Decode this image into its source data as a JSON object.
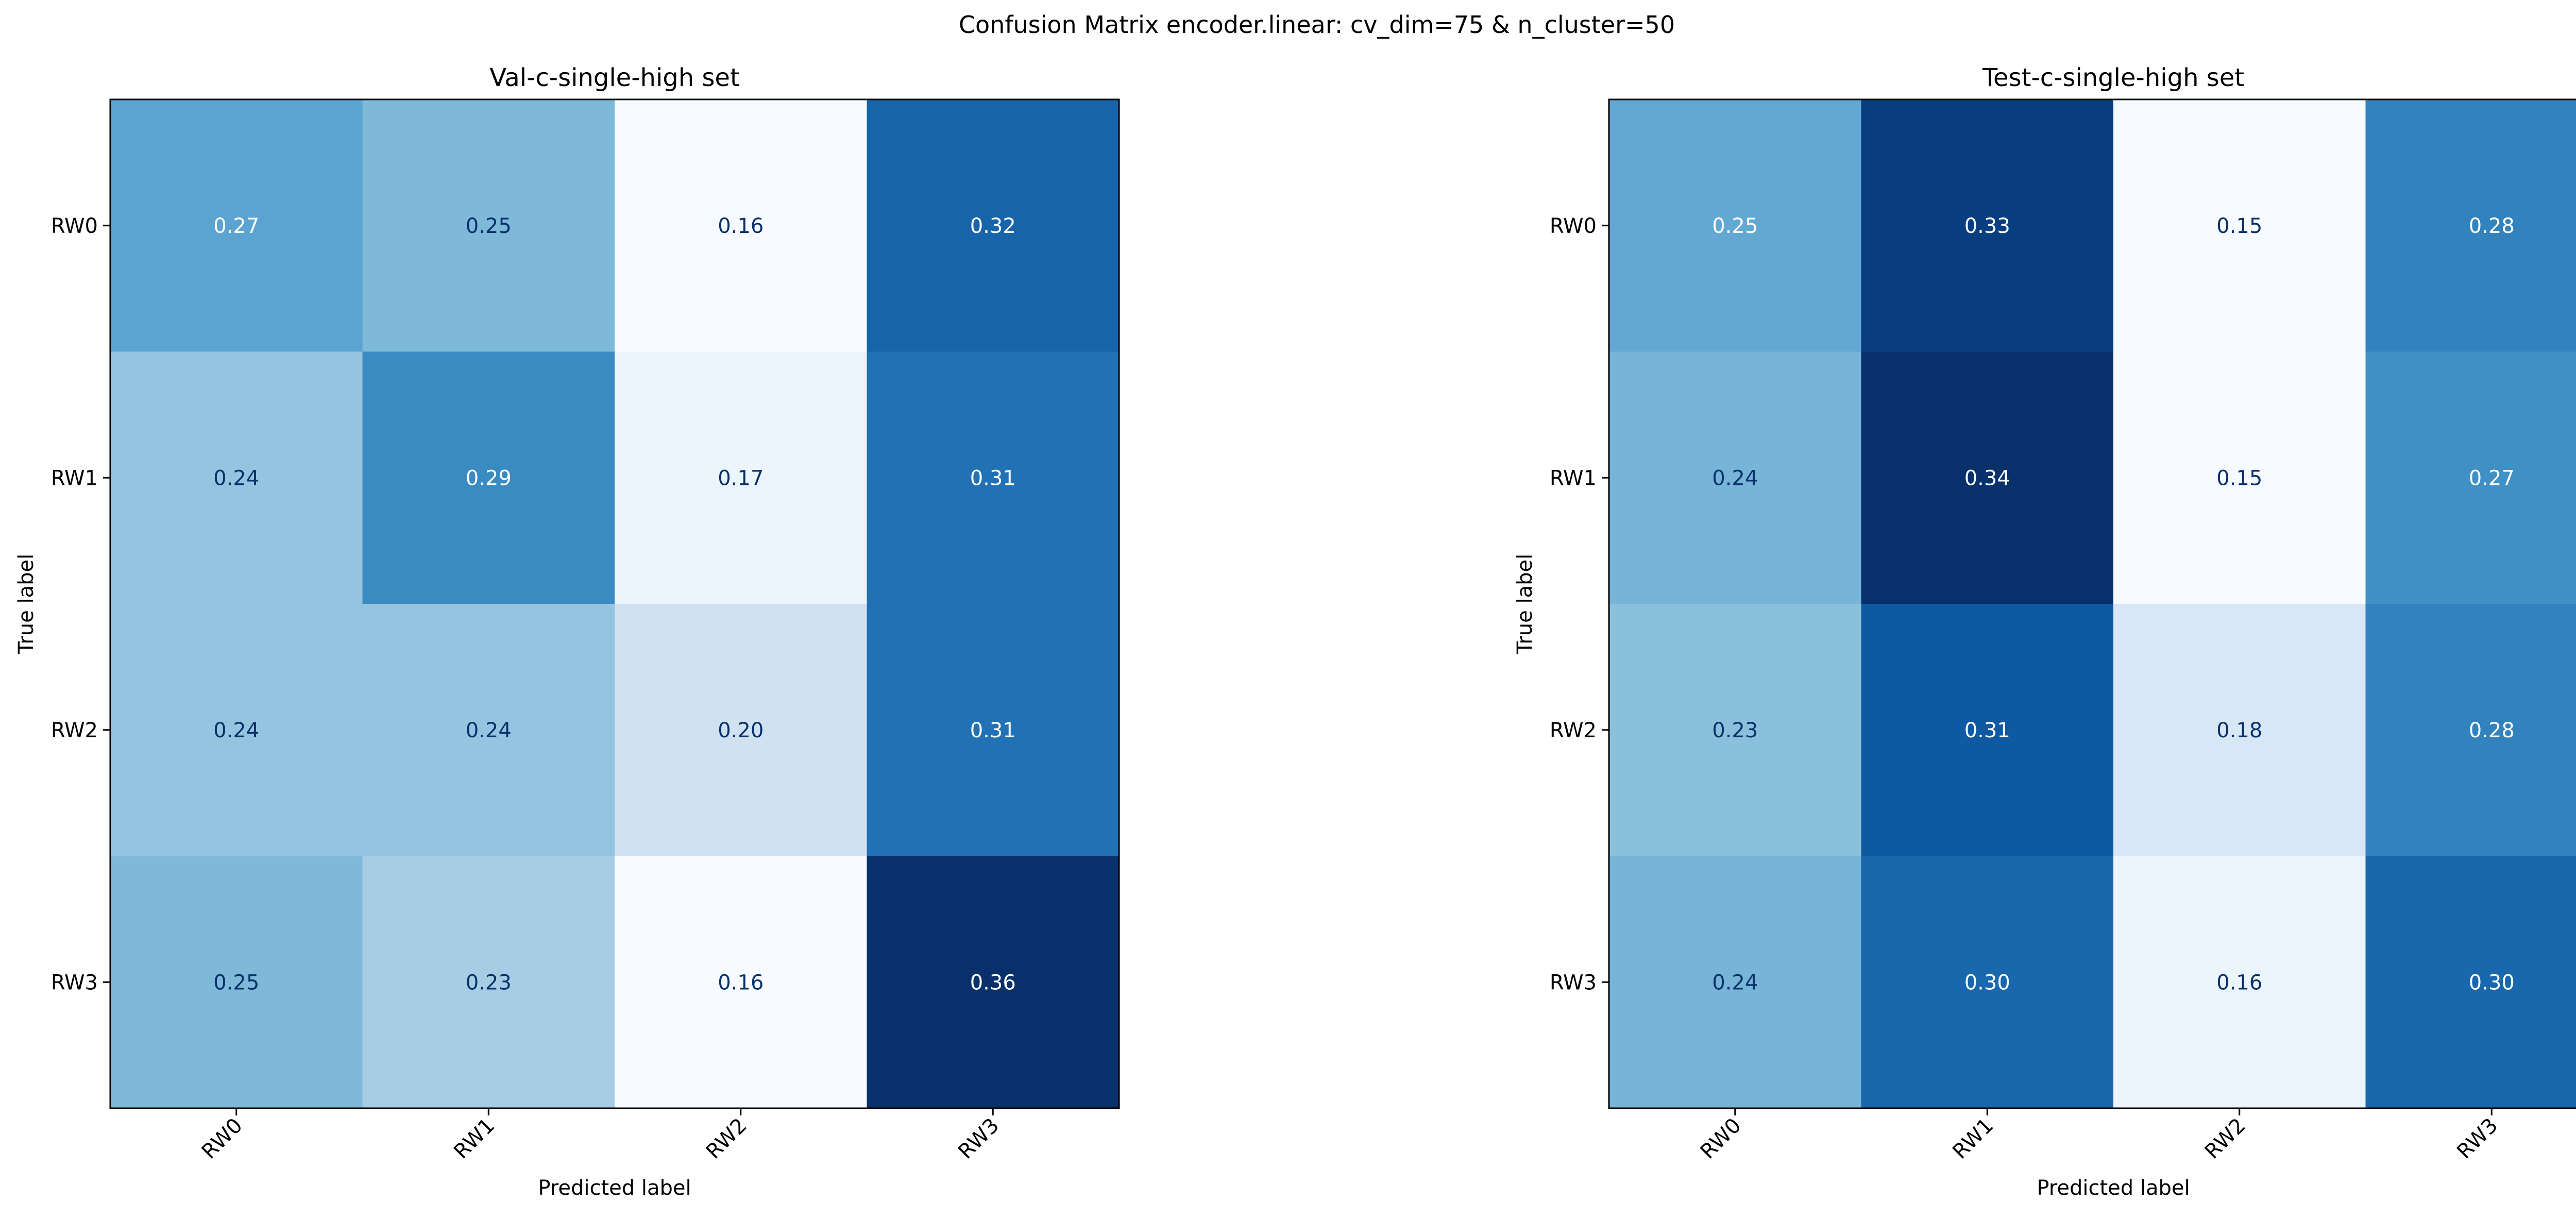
{
  "figure": {
    "suptitle": "Confusion Matrix encoder.linear: cv_dim=75 & n_cluster=50"
  },
  "chart_data": [
    {
      "type": "heatmap",
      "title": "Val-c-single-high set",
      "xlabel": "Predicted label",
      "ylabel": "True label",
      "x_categories": [
        "RW0",
        "RW1",
        "RW2",
        "RW3"
      ],
      "y_categories": [
        "RW0",
        "RW1",
        "RW2",
        "RW3"
      ],
      "values": [
        [
          0.27,
          0.25,
          0.16,
          0.32
        ],
        [
          0.24,
          0.29,
          0.17,
          0.31
        ],
        [
          0.24,
          0.24,
          0.2,
          0.31
        ],
        [
          0.25,
          0.23,
          0.16,
          0.36
        ]
      ],
      "colormap": "Blues",
      "value_format": "2 decimals",
      "grid": false,
      "legend": "none"
    },
    {
      "type": "heatmap",
      "title": "Test-c-single-high set",
      "xlabel": "Predicted label",
      "ylabel": "True label",
      "x_categories": [
        "RW0",
        "RW1",
        "RW2",
        "RW3"
      ],
      "y_categories": [
        "RW0",
        "RW1",
        "RW2",
        "RW3"
      ],
      "values": [
        [
          0.25,
          0.33,
          0.15,
          0.28
        ],
        [
          0.24,
          0.34,
          0.15,
          0.27
        ],
        [
          0.23,
          0.31,
          0.18,
          0.28
        ],
        [
          0.24,
          0.3,
          0.16,
          0.3
        ]
      ],
      "colormap": "Blues",
      "value_format": "2 decimals",
      "grid": false,
      "legend": "none"
    }
  ],
  "colors": {
    "cmap_stops": [
      "#f7fbff",
      "#deebf7",
      "#c6dbef",
      "#9ecae1",
      "#6baed6",
      "#4292c6",
      "#2171b5",
      "#08519c",
      "#08306b"
    ],
    "text_dark": "#08306b",
    "text_light": "#ffffff",
    "frame": "#000000"
  }
}
